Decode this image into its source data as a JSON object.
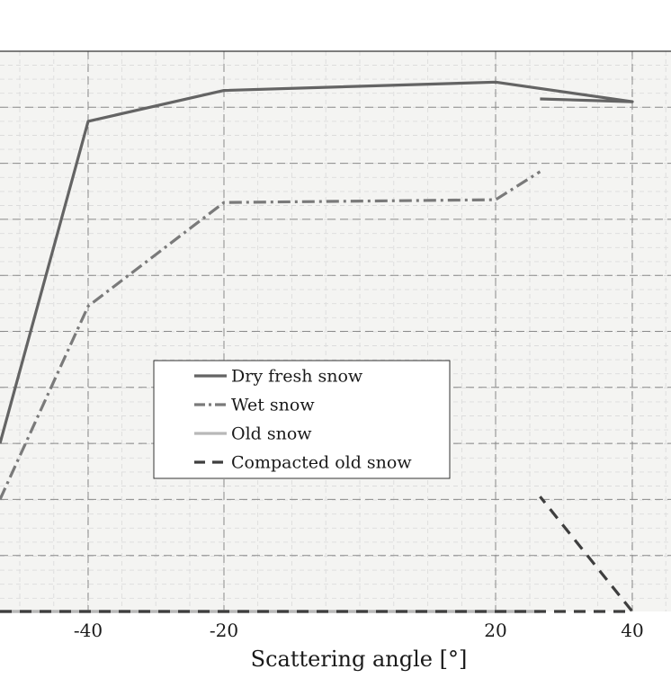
{
  "chart_data": {
    "type": "line",
    "xlabel": "Scattering angle [°]",
    "ylabel": "",
    "x_ticks": [
      -40,
      -20,
      20,
      40
    ],
    "x_tick_labels": [
      "-40",
      "-20",
      "20",
      "40"
    ],
    "xlim": [
      -53,
      26.5
    ],
    "ylim": [
      0,
      10
    ],
    "grid": true,
    "legend_position": "center-left",
    "series": [
      {
        "name": "Dry fresh snow",
        "style": "solid",
        "color": "#646464",
        "points": [
          [
            -53,
            3.0
          ],
          [
            -40,
            8.75
          ],
          [
            -20,
            9.3
          ],
          [
            20,
            9.45
          ],
          [
            40,
            9.1
          ],
          [
            26.5,
            9.15
          ]
        ]
      },
      {
        "name": "Wet snow",
        "style": "dashdot",
        "color": "#7a7a7a",
        "points": [
          [
            -53,
            2.0
          ],
          [
            -40,
            5.45
          ],
          [
            -20,
            7.3
          ],
          [
            20,
            7.35
          ],
          [
            26.5,
            7.85
          ]
        ]
      },
      {
        "name": "Old snow",
        "style": "solid",
        "color": "#b8b8b8",
        "points": [
          [
            -53,
            0.0
          ],
          [
            26.5,
            0.0
          ]
        ]
      },
      {
        "name": "Compacted old snow",
        "style": "dashed",
        "color": "#3e3e3e",
        "points": [
          [
            -53,
            0.0
          ],
          [
            40,
            0.0
          ],
          [
            26.5,
            2.05
          ]
        ]
      }
    ]
  }
}
